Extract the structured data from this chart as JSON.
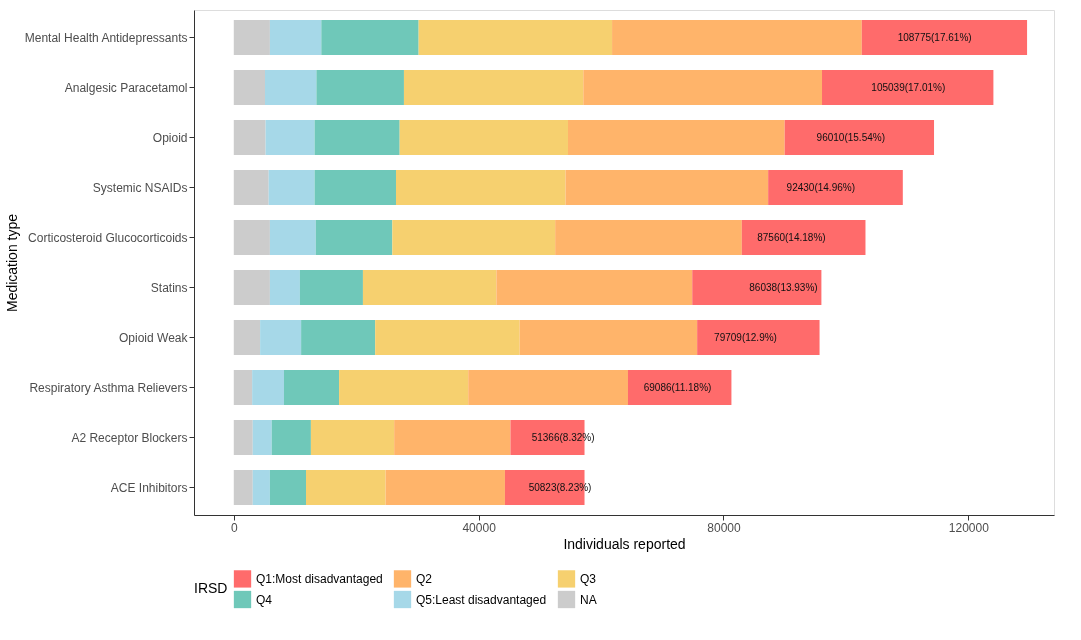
{
  "chart_data": {
    "type": "bar",
    "orientation": "horizontal",
    "stacked": true,
    "xlabel": "Individuals reported",
    "ylabel": "Medication type",
    "legend_title": "IRSD",
    "legend": "bottom",
    "grid": false,
    "categories": [
      "Mental Health Antidepressants",
      "Analgesic Paracetamol",
      "Opioid",
      "Systemic NSAIDs",
      "Corticosteroid Glucocorticoids",
      "Statins",
      "Opioid Weak",
      "Respiratory Asthma Relievers",
      "A2 Receptor Blockers",
      "ACE Inhibitors"
    ],
    "xlim": [
      -6500,
      134000
    ],
    "xticks": [
      0,
      40000,
      80000,
      120000
    ],
    "series": [
      {
        "name": "NA",
        "color": "#cccccc",
        "values": [
          5900,
          5100,
          5200,
          5700,
          5900,
          5900,
          4300,
          3000,
          3100,
          3100
        ]
      },
      {
        "name": "Q5:Least disadvantaged",
        "color": "#a6d8e8",
        "values": [
          8400,
          8400,
          8000,
          7500,
          7500,
          4900,
          6700,
          5200,
          3100,
          2800
        ]
      },
      {
        "name": "Q4",
        "color": "#6fc8b9",
        "values": [
          15900,
          14300,
          13900,
          13300,
          12500,
          10300,
          12100,
          9000,
          6400,
          5900
        ]
      },
      {
        "name": "Q3",
        "color": "#f6d06f",
        "values": [
          31600,
          29300,
          27500,
          27700,
          26600,
          21800,
          23600,
          21100,
          13600,
          13000
        ]
      },
      {
        "name": "Q2",
        "color": "#ffb46a",
        "values": [
          40800,
          39000,
          35400,
          33100,
          30500,
          32000,
          29000,
          26100,
          19000,
          19500
        ]
      },
      {
        "name": "Q1:Most disadvantaged",
        "color": "#ff6b6b",
        "values": [
          27000,
          28000,
          24400,
          22000,
          20200,
          21100,
          20000,
          16900,
          12100,
          13000
        ]
      }
    ],
    "annotations": [
      {
        "text": "108775(17.61%)",
        "x": 114500,
        "y": "Mental Health Antidepressants"
      },
      {
        "text": "105039(17.01%)",
        "x": 110200,
        "y": "Analgesic Paracetamol"
      },
      {
        "text": "96010(15.54%)",
        "x": 100800,
        "y": "Opioid"
      },
      {
        "text": "92430(14.96%)",
        "x": 95900,
        "y": "Systemic NSAIDs"
      },
      {
        "text": "87560(14.18%)",
        "x": 91100,
        "y": "Corticosteroid Glucocorticoids"
      },
      {
        "text": "86038(13.93%)",
        "x": 89800,
        "y": "Statins"
      },
      {
        "text": "79709(12.9%)",
        "x": 83600,
        "y": "Opioid Weak"
      },
      {
        "text": "69086(11.18%)",
        "x": 72500,
        "y": "Respiratory Asthma Relievers"
      },
      {
        "text": "51366(8.32%)",
        "x": 53800,
        "y": "A2 Receptor Blockers"
      },
      {
        "text": "50823(8.23%)",
        "x": 53300,
        "y": "ACE Inhibitors"
      }
    ]
  }
}
